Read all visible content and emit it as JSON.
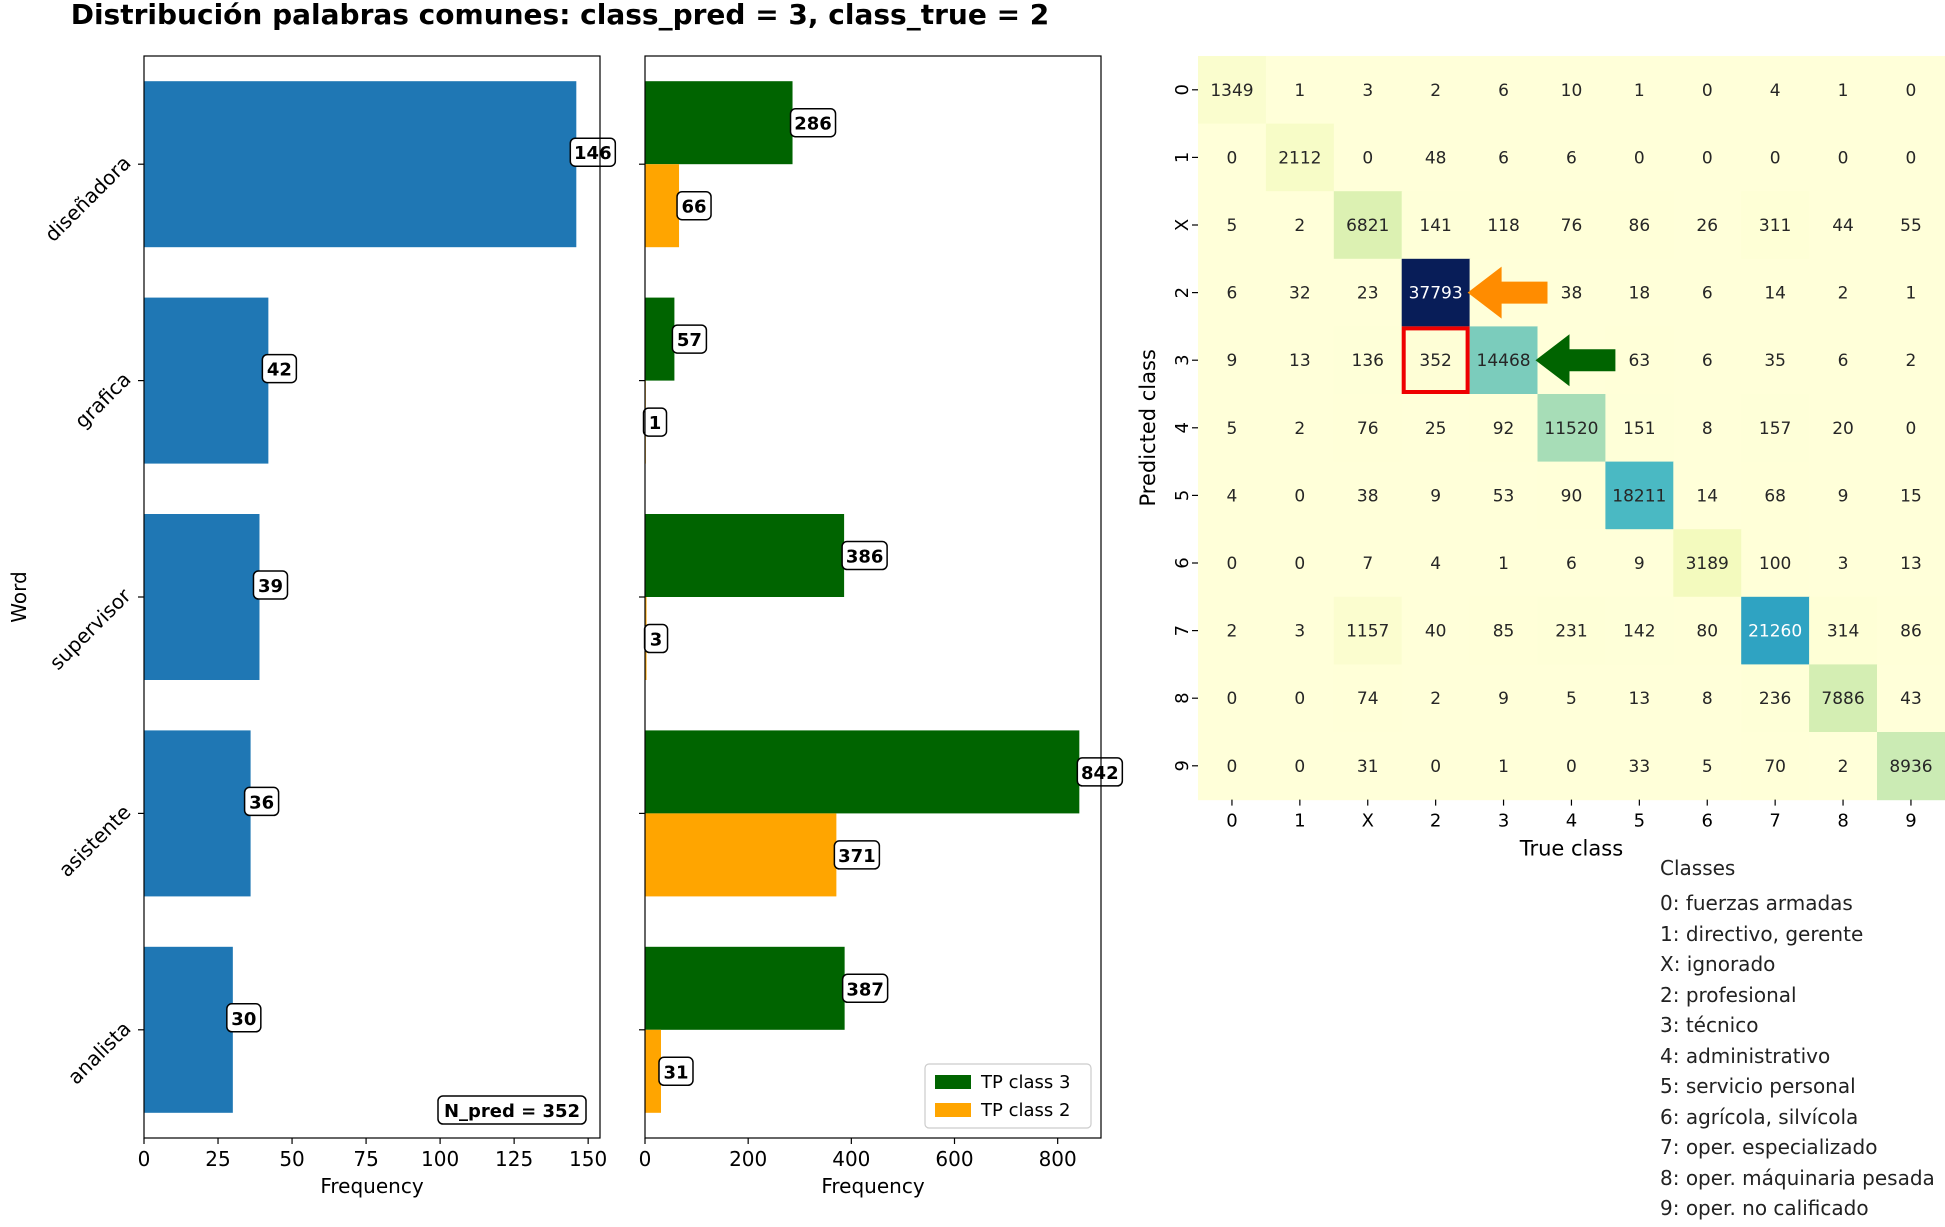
{
  "title": "Distribución palabras comunes:  class_pred = 3, class_true = 2",
  "chart_data": [
    {
      "type": "bar",
      "orientation": "horizontal",
      "categories": [
        "diseñadora",
        "grafica",
        "supervisor",
        "asistente",
        "analista"
      ],
      "values": [
        146,
        42,
        39,
        36,
        30
      ],
      "xlabel": "Frequency",
      "ylabel": "Word",
      "xlim": [
        0,
        154
      ],
      "xticks": [
        0,
        25,
        50,
        75,
        100,
        125,
        150
      ],
      "color": "#1f77b4",
      "annotation": "N_pred = 352",
      "annotation_placement": "bottom-right"
    },
    {
      "type": "bar",
      "orientation": "horizontal",
      "categories": [
        "diseñadora",
        "grafica",
        "supervisor",
        "asistente",
        "analista"
      ],
      "series": [
        {
          "name": "TP class 3",
          "values": [
            286,
            57,
            386,
            842,
            387
          ],
          "color": "#006400"
        },
        {
          "name": "TP class 2",
          "values": [
            66,
            1,
            3,
            371,
            31
          ],
          "color": "#ffa500"
        }
      ],
      "xlabel": "Frequency",
      "xlim": [
        0,
        884
      ],
      "xticks": [
        0,
        200,
        400,
        600,
        800
      ],
      "legend_placement": "bottom-right"
    },
    {
      "type": "heatmap",
      "colormap": "YlGnBu",
      "x_categories": [
        "0",
        "1",
        "X",
        "2",
        "3",
        "4",
        "5",
        "6",
        "7",
        "8",
        "9"
      ],
      "y_categories": [
        "0",
        "1",
        "X",
        "2",
        "3",
        "4",
        "5",
        "6",
        "7",
        "8",
        "9"
      ],
      "xlabel": "True class",
      "ylabel": "Predicted class",
      "vmin": 0,
      "vmax": 37793,
      "matrix": [
        [
          1349,
          1,
          3,
          2,
          6,
          10,
          1,
          0,
          4,
          1,
          0
        ],
        [
          0,
          2112,
          0,
          48,
          6,
          6,
          0,
          0,
          0,
          0,
          0
        ],
        [
          5,
          2,
          6821,
          141,
          118,
          76,
          86,
          26,
          311,
          44,
          55
        ],
        [
          6,
          32,
          23,
          37793,
          0,
          38,
          18,
          6,
          14,
          2,
          1
        ],
        [
          9,
          13,
          136,
          352,
          14468,
          0,
          63,
          6,
          35,
          6,
          2
        ],
        [
          5,
          2,
          76,
          25,
          92,
          11520,
          151,
          8,
          157,
          20,
          0
        ],
        [
          4,
          0,
          38,
          9,
          53,
          90,
          18211,
          14,
          68,
          9,
          15
        ],
        [
          0,
          0,
          7,
          4,
          1,
          6,
          9,
          3189,
          100,
          3,
          13
        ],
        [
          2,
          3,
          1157,
          40,
          85,
          231,
          142,
          80,
          21260,
          314,
          86
        ],
        [
          0,
          0,
          74,
          2,
          9,
          5,
          13,
          8,
          236,
          7886,
          43
        ],
        [
          0,
          0,
          31,
          0,
          1,
          0,
          33,
          5,
          70,
          2,
          8936
        ]
      ],
      "hidden_cells": [
        [
          3,
          4
        ],
        [
          4,
          5
        ]
      ],
      "highlight_cell": {
        "row": 4,
        "col": 3,
        "color": "#ee0000"
      },
      "arrows": [
        {
          "row": 3,
          "col": 4,
          "color": "#ff8c00"
        },
        {
          "row": 4,
          "col": 5,
          "color": "#006400"
        }
      ]
    }
  ],
  "class_legend": {
    "title": "Classes",
    "items": [
      "0: fuerzas armadas",
      "1: directivo, gerente",
      "X: ignorado",
      "2: profesional",
      "3: técnico",
      "4: administrativo",
      "5: servicio personal",
      "6: agrícola, silvícola",
      "7: oper. especializado",
      "8: oper. máquinaria pesada",
      "9: oper. no calificado"
    ]
  }
}
